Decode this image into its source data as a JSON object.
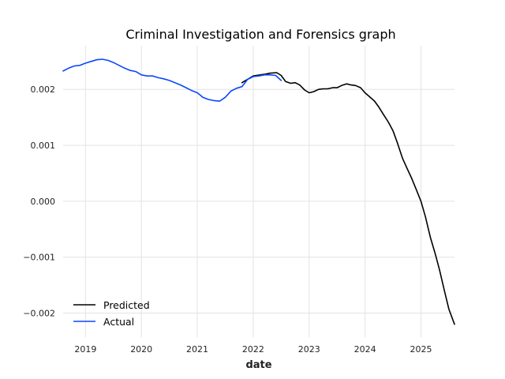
{
  "chart_data": {
    "type": "line",
    "title": "Criminal Investigation and Forensics graph",
    "xlabel": "date",
    "ylabel": "",
    "xlim": [
      2018.6,
      2025.6
    ],
    "ylim": [
      -0.00243,
      0.00278
    ],
    "x_ticks": [
      2019,
      2020,
      2021,
      2022,
      2023,
      2024,
      2025
    ],
    "x_tick_labels": [
      "2019",
      "2020",
      "2021",
      "2022",
      "2023",
      "2024",
      "2025"
    ],
    "y_ticks": [
      -0.002,
      -0.001,
      0.0,
      0.001,
      0.002
    ],
    "y_tick_labels": [
      "−0.002",
      "−0.001",
      "0.000",
      "0.001",
      "0.002"
    ],
    "grid": true,
    "legend_position": "bottom-left",
    "series": [
      {
        "name": "Predicted",
        "color": "#000000",
        "x": [
          2021.8,
          2022.0,
          2022.2,
          2022.3,
          2022.42,
          2022.5,
          2022.58,
          2022.67,
          2022.75,
          2022.83,
          2022.92,
          2023.0,
          2023.08,
          2023.17,
          2023.25,
          2023.33,
          2023.42,
          2023.5,
          2023.58,
          2023.67,
          2023.75,
          2023.83,
          2023.92,
          2024.0,
          2024.08,
          2024.17,
          2024.25,
          2024.33,
          2024.42,
          2024.5,
          2024.58,
          2024.67,
          2024.75,
          2024.83,
          2024.92,
          2025.0,
          2025.08,
          2025.17,
          2025.25,
          2025.33,
          2025.42,
          2025.5,
          2025.6
        ],
        "y": [
          0.00212,
          0.00224,
          0.00227,
          0.00229,
          0.0023,
          0.00225,
          0.00214,
          0.00211,
          0.00212,
          0.00208,
          0.00199,
          0.00194,
          0.00196,
          0.002,
          0.00201,
          0.00201,
          0.00203,
          0.00203,
          0.00207,
          0.0021,
          0.00208,
          0.00207,
          0.00203,
          0.00194,
          0.00187,
          0.00179,
          0.00168,
          0.00155,
          0.00141,
          0.00126,
          0.00104,
          0.00077,
          0.00059,
          0.00042,
          0.0002,
          0.0,
          -0.00028,
          -0.00065,
          -0.00092,
          -0.00122,
          -0.0016,
          -0.00193,
          -0.0022
        ]
      },
      {
        "name": "Actual",
        "color": "#0a47ff",
        "x": [
          2018.6,
          2018.7,
          2018.8,
          2018.9,
          2019.0,
          2019.1,
          2019.2,
          2019.3,
          2019.4,
          2019.5,
          2019.6,
          2019.7,
          2019.8,
          2019.9,
          2020.0,
          2020.1,
          2020.2,
          2020.3,
          2020.4,
          2020.5,
          2020.6,
          2020.7,
          2020.8,
          2020.9,
          2021.0,
          2021.1,
          2021.2,
          2021.3,
          2021.4,
          2021.5,
          2021.6,
          2021.7,
          2021.8,
          2021.9,
          2022.0,
          2022.1,
          2022.2,
          2022.3,
          2022.4,
          2022.5
        ],
        "y": [
          0.00233,
          0.00238,
          0.00242,
          0.00243,
          0.00247,
          0.0025,
          0.00253,
          0.00254,
          0.00252,
          0.00248,
          0.00243,
          0.00238,
          0.00234,
          0.00232,
          0.00226,
          0.00224,
          0.00224,
          0.00221,
          0.00219,
          0.00216,
          0.00212,
          0.00208,
          0.00203,
          0.00198,
          0.00194,
          0.00186,
          0.00182,
          0.0018,
          0.00179,
          0.00186,
          0.00197,
          0.00202,
          0.00205,
          0.00218,
          0.00223,
          0.00224,
          0.00226,
          0.00226,
          0.00225,
          0.00216
        ]
      }
    ]
  }
}
